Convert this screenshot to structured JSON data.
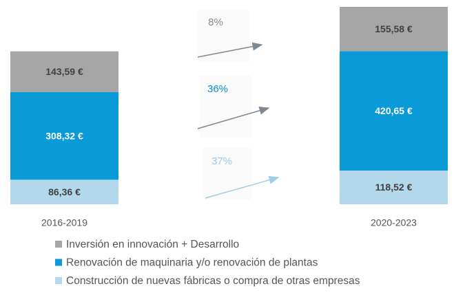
{
  "chart_data": {
    "type": "stacked_bar",
    "categories": [
      "2016-2019",
      "2020-2023"
    ],
    "series": [
      {
        "name": "Construcción de nuevas fábricas o compra de otras empresas",
        "color": "#b4d8eb",
        "values": [
          86.36,
          118.52
        ],
        "value_labels": [
          "86,36 €",
          "118,52 €"
        ]
      },
      {
        "name": "Renovación de maquinaria y/o renovación de plantas",
        "color": "#0a9ad8",
        "values": [
          308.32,
          420.65
        ],
        "value_labels": [
          "308,32 €",
          "420,65 €"
        ]
      },
      {
        "name": "Inversión en innovación + Desarrollo",
        "color": "#a6a6a6",
        "values": [
          143.59,
          155.58
        ],
        "value_labels": [
          "143,59 €",
          "155,58 €"
        ]
      }
    ],
    "annotations": [
      {
        "text": "8%",
        "color": "#8a8a8a"
      },
      {
        "text": "36%",
        "color": "#0a8fd0"
      },
      {
        "text": "37%",
        "color": "#9fcde6"
      }
    ]
  }
}
